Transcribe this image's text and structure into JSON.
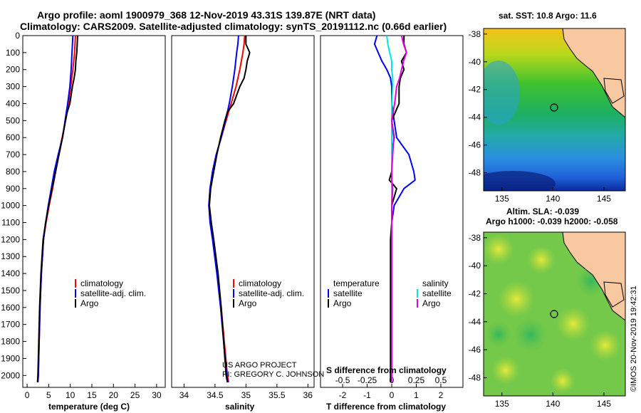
{
  "title_line1": "Argo profile: aoml 1900979_368 12-Nov-2019 43.31S 139.87E (NRT data)",
  "title_line2": "Climatology: CARS2009. Satellite-adjusted climatology: synTS_20191112.nc (0.66d earlier)",
  "colors": {
    "climatology": "#ff0000",
    "satellite": "#0000ff",
    "argo": "#000000",
    "t_satellite": "#0000ff",
    "t_argo": "#000000",
    "s_satellite": "#00e5e5",
    "s_argo": "#e000e0"
  },
  "project": {
    "line1": "US ARGO PROJECT",
    "line2": "PI: GREGORY C. JOHNSON"
  },
  "watermark": "©IMOS 20-Nov-2019 19:42:31",
  "legend": {
    "climatology": "climatology",
    "satellite_adj": "satellite-adj. clim.",
    "argo": "Argo",
    "temperature": "temperature",
    "salinity": "salinity",
    "satellite": "satellite"
  },
  "maps": {
    "sst": {
      "title": "sat. SST: 10.8 Argo: 11.6"
    },
    "sla": {
      "title1": "Altim. SLA: -0.039",
      "title2": "Argo h1000: -0.039 h2000: -0.058"
    },
    "lon_ticks": [
      "135",
      "140",
      "145"
    ],
    "lat_ticks": [
      "-38",
      "-40",
      "-42",
      "-44",
      "-46",
      "-48"
    ],
    "float_position": {
      "lon": 139.87,
      "lat": -43.31
    }
  },
  "chart_data": [
    {
      "type": "line",
      "name": "temperature",
      "xlabel": "temperature (deg C)",
      "ylabel": "",
      "xlim": [
        -1,
        32
      ],
      "ylim": [
        2070,
        0
      ],
      "x_ticks": [
        0,
        5,
        10,
        15,
        20,
        25,
        30
      ],
      "x_tick_labels": [
        "0",
        "5",
        "10",
        "15",
        "20",
        "25",
        "30"
      ],
      "y_ticks": [
        0,
        100,
        200,
        300,
        400,
        500,
        600,
        700,
        800,
        900,
        1000,
        1100,
        1200,
        1300,
        1400,
        1500,
        1600,
        1700,
        1800,
        1900,
        2000
      ],
      "y_tick_labels": [
        "0",
        "100",
        "200",
        "300",
        "400",
        "500",
        "600",
        "700",
        "800",
        "900",
        "1000",
        "1100",
        "1200",
        "1300",
        "1400",
        "1500",
        "1600",
        "1700",
        "1800",
        "1900",
        "2000"
      ],
      "series": [
        {
          "name": "climatology",
          "depth": [
            0,
            50,
            100,
            200,
            300,
            400,
            500,
            600,
            700,
            800,
            900,
            1000,
            1100,
            1200,
            1400,
            1600,
            1800,
            2000,
            2040
          ],
          "values": [
            11.2,
            11.1,
            11.0,
            10.6,
            10.1,
            9.6,
            8.9,
            8.1,
            7.3,
            6.6,
            5.9,
            5.1,
            4.4,
            3.8,
            3.3,
            3.0,
            2.8,
            2.6,
            2.5
          ]
        },
        {
          "name": "satellite-adj. clim.",
          "depth": [
            0,
            50,
            100,
            200,
            300,
            400,
            500,
            600,
            700,
            800,
            900,
            1000,
            1100,
            1200,
            1400,
            1600,
            1800,
            2000,
            2040
          ],
          "values": [
            10.6,
            10.5,
            10.4,
            10.2,
            9.9,
            9.4,
            8.8,
            8.2,
            7.2,
            6.3,
            5.6,
            4.9,
            4.3,
            3.8,
            3.3,
            3.0,
            2.8,
            2.6,
            2.5
          ]
        },
        {
          "name": "Argo",
          "depth": [
            0,
            50,
            100,
            150,
            200,
            250,
            300,
            350,
            400,
            450,
            500,
            600,
            700,
            800,
            900,
            1000,
            1100,
            1200,
            1400,
            1600,
            1800,
            2000,
            2040
          ],
          "values": [
            11.7,
            11.6,
            11.5,
            11.3,
            11.2,
            10.9,
            10.5,
            10.2,
            9.9,
            9.3,
            8.9,
            8.2,
            7.4,
            6.6,
            5.8,
            5.0,
            4.3,
            3.7,
            3.2,
            2.9,
            2.7,
            2.5,
            2.4
          ]
        }
      ]
    },
    {
      "type": "line",
      "name": "salinity",
      "xlabel": "salinity",
      "ylabel": "",
      "xlim": [
        33.8,
        36.1
      ],
      "ylim": [
        2070,
        0
      ],
      "x_ticks": [
        34,
        34.5,
        35,
        35.5,
        36
      ],
      "x_tick_labels": [
        "34",
        "34.5",
        "35",
        "35.5",
        "36"
      ],
      "series": [
        {
          "name": "climatology",
          "depth": [
            0,
            50,
            100,
            200,
            300,
            400,
            500,
            600,
            700,
            800,
            900,
            1000,
            1100,
            1200,
            1400,
            1600,
            1800,
            2000,
            2040
          ],
          "values": [
            34.98,
            34.97,
            34.95,
            34.9,
            34.84,
            34.76,
            34.68,
            34.6,
            34.52,
            34.46,
            34.42,
            34.4,
            34.43,
            34.47,
            34.54,
            34.6,
            34.65,
            34.7,
            34.72
          ]
        },
        {
          "name": "satellite-adj. clim.",
          "depth": [
            0,
            50,
            100,
            200,
            300,
            400,
            500,
            600,
            700,
            800,
            900,
            1000,
            1100,
            1200,
            1400,
            1600,
            1800,
            2000,
            2040
          ],
          "values": [
            34.88,
            34.87,
            34.85,
            34.82,
            34.78,
            34.73,
            34.67,
            34.6,
            34.52,
            34.46,
            34.42,
            34.4,
            34.42,
            34.46,
            34.53,
            34.59,
            34.64,
            34.69,
            34.71
          ]
        },
        {
          "name": "Argo",
          "depth": [
            0,
            50,
            100,
            150,
            200,
            250,
            300,
            350,
            400,
            450,
            500,
            600,
            700,
            800,
            900,
            1000,
            1100,
            1200,
            1400,
            1600,
            1800,
            2000,
            2040
          ],
          "values": [
            35.0,
            35.0,
            35.06,
            35.02,
            35.0,
            34.97,
            34.9,
            34.85,
            34.8,
            34.7,
            34.66,
            34.59,
            34.53,
            34.48,
            34.43,
            34.41,
            34.44,
            34.48,
            34.55,
            34.6,
            34.64,
            34.68,
            34.7
          ]
        }
      ]
    },
    {
      "type": "line",
      "name": "difference from climatology",
      "xlabel": "T difference from climatology",
      "x2label": "S difference from climatology",
      "xlim": [
        -2.9,
        2.9
      ],
      "ylim": [
        2070,
        0
      ],
      "x_ticks": [
        -2,
        -1,
        0,
        1,
        2
      ],
      "x_tick_labels": [
        "-2",
        "-1",
        "0",
        "1",
        "2"
      ],
      "x2_ticks": [
        -0.5,
        -0.25,
        0,
        0.25,
        0.5
      ],
      "x2_tick_labels": [
        "-0.5",
        "-0.25",
        "0",
        "0.25",
        "0.5"
      ],
      "series": [
        {
          "name": "temperature satellite",
          "depth": [
            0,
            50,
            100,
            150,
            200,
            250,
            300,
            400,
            500,
            600,
            700,
            800,
            850,
            900,
            1000,
            1100,
            1200,
            1400,
            1600,
            1800,
            2000,
            2040
          ],
          "values": [
            -0.6,
            -0.7,
            -0.55,
            -0.4,
            -0.2,
            -0.05,
            0.0,
            0.0,
            0.1,
            0.2,
            0.7,
            0.9,
            0.95,
            0.5,
            0.1,
            0.0,
            0.0,
            0.0,
            0.0,
            0.0,
            0.0,
            0.0
          ]
        },
        {
          "name": "temperature Argo",
          "depth": [
            0,
            50,
            100,
            150,
            200,
            250,
            300,
            400,
            500,
            600,
            700,
            800,
            850,
            900,
            1000,
            1100,
            1200,
            1400,
            1600,
            1800,
            2000,
            2040
          ],
          "values": [
            0.5,
            0.5,
            0.6,
            0.4,
            0.5,
            0.35,
            0.3,
            0.3,
            0.0,
            0.1,
            0.0,
            0.0,
            -0.1,
            0.2,
            0.0,
            0.0,
            -0.05,
            -0.05,
            -0.05,
            -0.05,
            -0.05,
            -0.05
          ]
        },
        {
          "name": "salinity satellite",
          "s_values": [
            -0.05,
            -0.04,
            -0.02,
            0.0,
            0.0,
            0.01,
            0.01,
            0.0,
            0.0,
            0.0,
            0.0,
            0.0,
            0.0,
            0.0,
            0.0,
            0.0,
            0.0,
            0.0,
            0.0,
            0.0,
            0.0,
            0.0
          ],
          "depth": [
            0,
            50,
            100,
            150,
            200,
            250,
            300,
            400,
            500,
            600,
            700,
            800,
            850,
            900,
            1000,
            1100,
            1200,
            1400,
            1600,
            1800,
            2000,
            2040
          ]
        },
        {
          "name": "salinity Argo",
          "s_values": [
            0.1,
            0.12,
            0.15,
            0.12,
            0.1,
            0.08,
            0.05,
            0.03,
            0.0,
            0.02,
            0.01,
            0.0,
            0.0,
            0.01,
            0.0,
            0.0,
            0.0,
            0.0,
            0.0,
            0.0,
            0.0,
            0.0
          ],
          "depth": [
            0,
            50,
            100,
            150,
            200,
            250,
            300,
            400,
            500,
            600,
            700,
            800,
            850,
            900,
            1000,
            1100,
            1200,
            1400,
            1600,
            1800,
            2000,
            2040
          ]
        }
      ]
    }
  ]
}
